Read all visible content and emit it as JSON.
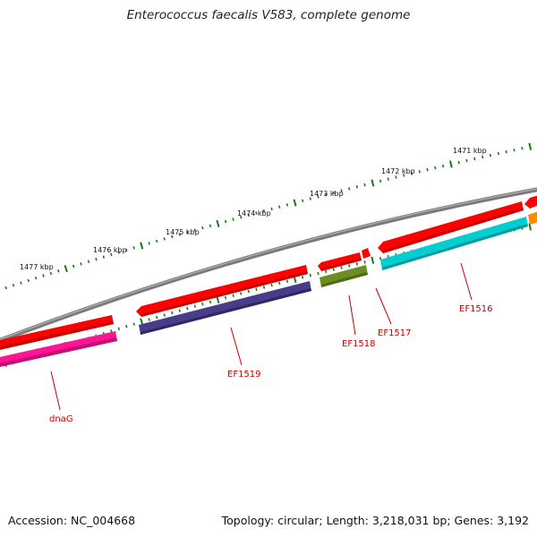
{
  "title": "Enterococcus faecalis V583, complete genome",
  "footer": {
    "accession": "Accession: NC_004668",
    "summary": "Topology: circular; Length: 3,218,031 bp; Genes: 3,192"
  },
  "ruler": {
    "tick_labels": [
      "1477 kbp",
      "1476 kbp",
      "1475 kbp",
      "1474 kbp",
      "1473 kbp",
      "1472 kbp",
      "1471 kbp"
    ],
    "tick_color": "#1a7a1a"
  },
  "genes": [
    {
      "label": "dnaG",
      "color": "#ff1493"
    },
    {
      "label": "EF1519",
      "color": "#483d8b"
    },
    {
      "label": "EF1518",
      "color": "#6b8e23"
    },
    {
      "label": "EF1517",
      "color": "#ff0000"
    },
    {
      "label": "EF1516",
      "color": "#00ced1"
    },
    {
      "label": "",
      "color": "#ff8c00"
    }
  ],
  "colors": {
    "backbone": "#808080",
    "cds": "#ff0000",
    "label": "#cc0000"
  }
}
